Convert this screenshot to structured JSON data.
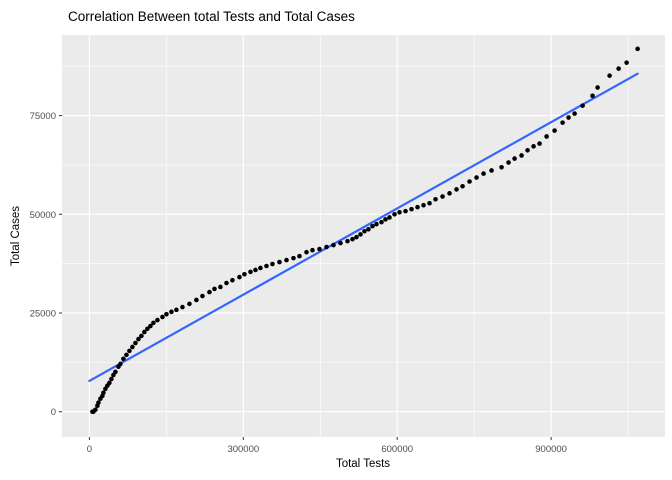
{
  "title": "Correlation Between total Tests and Total Cases",
  "colors": {
    "outer_bg": "#ffffff",
    "panel_bg": "#ebebeb",
    "grid": "#ffffff",
    "point": "#000000",
    "fit_line": "#3366ff",
    "tick_label": "#4d4d4d",
    "tick_mark": "#333333",
    "text": "#000000"
  },
  "chart_data": {
    "type": "scatter",
    "title": "Correlation Between total Tests and Total Cases",
    "xlabel": "Total Tests",
    "ylabel": "Total Cases",
    "legend_position": "none",
    "grid": true,
    "xlim": [
      -53400,
      1122000
    ],
    "ylim": [
      -6400,
      95400
    ],
    "x_ticks": [
      0,
      300000,
      600000,
      900000
    ],
    "y_ticks": [
      0,
      25000,
      50000,
      75000
    ],
    "x_minor_ticks": [
      150000,
      450000,
      750000,
      1050000
    ],
    "y_minor_ticks": [
      12500,
      37500,
      62500,
      87500
    ],
    "series": [
      {
        "name": "observations",
        "kind": "scatter",
        "color": "#000000",
        "points": [
          [
            5900,
            0
          ],
          [
            7800,
            0
          ],
          [
            11700,
            500
          ],
          [
            15600,
            1500
          ],
          [
            17600,
            2300
          ],
          [
            21400,
            3300
          ],
          [
            25400,
            4000
          ],
          [
            27300,
            4800
          ],
          [
            31200,
            5800
          ],
          [
            35100,
            6600
          ],
          [
            39000,
            7300
          ],
          [
            42900,
            8300
          ],
          [
            46800,
            9300
          ],
          [
            50700,
            10100
          ],
          [
            56600,
            11400
          ],
          [
            60400,
            12100
          ],
          [
            66300,
            13400
          ],
          [
            72200,
            14400
          ],
          [
            78000,
            15400
          ],
          [
            83800,
            16400
          ],
          [
            89700,
            17400
          ],
          [
            95600,
            18400
          ],
          [
            101400,
            19200
          ],
          [
            107200,
            20200
          ],
          [
            113100,
            21000
          ],
          [
            119000,
            21700
          ],
          [
            124800,
            22500
          ],
          [
            132600,
            23200
          ],
          [
            142400,
            24000
          ],
          [
            150200,
            24700
          ],
          [
            159900,
            25300
          ],
          [
            169600,
            25800
          ],
          [
            181400,
            26500
          ],
          [
            195000,
            27300
          ],
          [
            208600,
            28300
          ],
          [
            220400,
            29300
          ],
          [
            234000,
            30300
          ],
          [
            243800,
            31100
          ],
          [
            255400,
            31600
          ],
          [
            267200,
            32600
          ],
          [
            278800,
            33300
          ],
          [
            292500,
            34100
          ],
          [
            302200,
            34800
          ],
          [
            314000,
            35400
          ],
          [
            323700,
            35900
          ],
          [
            333400,
            36400
          ],
          [
            345200,
            36900
          ],
          [
            356800,
            37400
          ],
          [
            370500,
            37900
          ],
          [
            384200,
            38400
          ],
          [
            397800,
            38900
          ],
          [
            409500,
            39400
          ],
          [
            423200,
            40400
          ],
          [
            434800,
            40900
          ],
          [
            448500,
            41200
          ],
          [
            462200,
            41700
          ],
          [
            475800,
            42200
          ],
          [
            489400,
            42700
          ],
          [
            503100,
            43200
          ],
          [
            512800,
            43700
          ],
          [
            520600,
            44200
          ],
          [
            528400,
            44900
          ],
          [
            536200,
            45700
          ],
          [
            544000,
            46200
          ],
          [
            551800,
            47000
          ],
          [
            559600,
            47500
          ],
          [
            569400,
            48000
          ],
          [
            577200,
            48700
          ],
          [
            585000,
            49200
          ],
          [
            594800,
            50000
          ],
          [
            604500,
            50500
          ],
          [
            616200,
            50800
          ],
          [
            627900,
            51300
          ],
          [
            639600,
            51800
          ],
          [
            651300,
            52300
          ],
          [
            663000,
            52800
          ],
          [
            674700,
            53800
          ],
          [
            688400,
            54500
          ],
          [
            702000,
            55300
          ],
          [
            715600,
            56300
          ],
          [
            727400,
            57100
          ],
          [
            741000,
            58300
          ],
          [
            754600,
            59300
          ],
          [
            768300,
            60300
          ],
          [
            783900,
            61100
          ],
          [
            803400,
            61900
          ],
          [
            817000,
            63100
          ],
          [
            828800,
            64100
          ],
          [
            842400,
            64900
          ],
          [
            854100,
            66200
          ],
          [
            865800,
            67200
          ],
          [
            877500,
            67900
          ],
          [
            891200,
            69700
          ],
          [
            906800,
            71200
          ],
          [
            922400,
            73200
          ],
          [
            934000,
            74500
          ],
          [
            945800,
            75500
          ],
          [
            961400,
            77500
          ],
          [
            980800,
            80000
          ],
          [
            990600,
            82100
          ],
          [
            1014000,
            85100
          ],
          [
            1031600,
            86900
          ],
          [
            1047200,
            88400
          ],
          [
            1068600,
            91900
          ]
        ]
      },
      {
        "name": "linear-fit",
        "kind": "line",
        "color": "#3366ff",
        "points": [
          [
            0,
            7800
          ],
          [
            1068600,
            85600
          ]
        ]
      }
    ]
  }
}
